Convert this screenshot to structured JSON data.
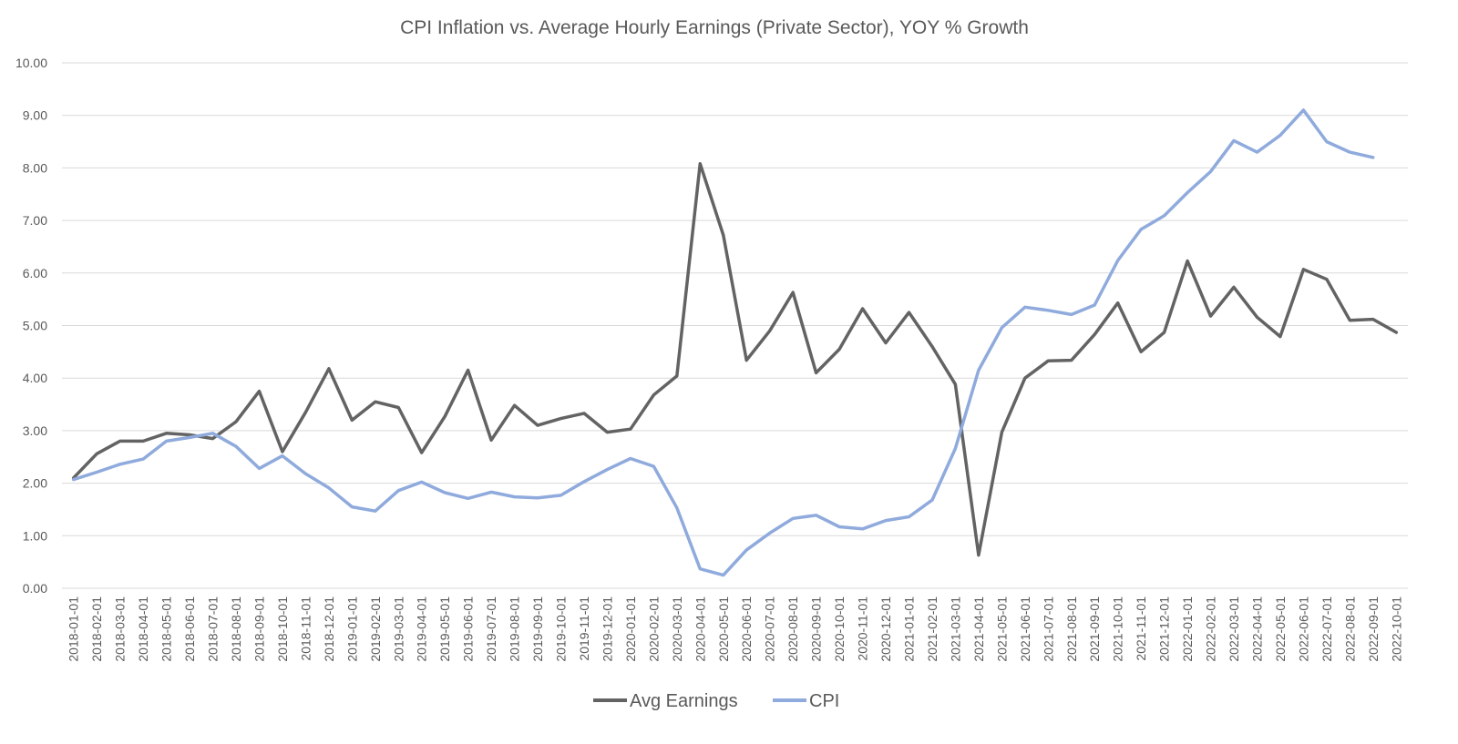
{
  "chart_data": {
    "type": "line",
    "title": "CPI Inflation vs. Average Hourly Earnings (Private Sector), YOY % Growth",
    "xlabel": "",
    "ylabel": "",
    "ylim": [
      0,
      10
    ],
    "yticks": [
      "0.00",
      "1.00",
      "2.00",
      "3.00",
      "4.00",
      "5.00",
      "6.00",
      "7.00",
      "8.00",
      "9.00",
      "10.00"
    ],
    "grid": true,
    "legend_position": "bottom",
    "categories": [
      "2018-01-01",
      "2018-02-01",
      "2018-03-01",
      "2018-04-01",
      "2018-05-01",
      "2018-06-01",
      "2018-07-01",
      "2018-08-01",
      "2018-09-01",
      "2018-10-01",
      "2018-11-01",
      "2018-12-01",
      "2019-01-01",
      "2019-02-01",
      "2019-03-01",
      "2019-04-01",
      "2019-05-01",
      "2019-06-01",
      "2019-07-01",
      "2019-08-01",
      "2019-09-01",
      "2019-10-01",
      "2019-11-01",
      "2019-12-01",
      "2020-01-01",
      "2020-02-01",
      "2020-03-01",
      "2020-04-01",
      "2020-05-01",
      "2020-06-01",
      "2020-07-01",
      "2020-08-01",
      "2020-09-01",
      "2020-10-01",
      "2020-11-01",
      "2020-12-01",
      "2021-01-01",
      "2021-02-01",
      "2021-03-01",
      "2021-04-01",
      "2021-05-01",
      "2021-06-01",
      "2021-07-01",
      "2021-08-01",
      "2021-09-01",
      "2021-10-01",
      "2021-11-01",
      "2021-12-01",
      "2022-01-01",
      "2022-02-01",
      "2022-03-01",
      "2022-04-01",
      "2022-05-01",
      "2022-06-01",
      "2022-07-01",
      "2022-08-01",
      "2022-09-01",
      "2022-10-01"
    ],
    "series": [
      {
        "name": "Avg Earnings",
        "color": "#636363",
        "values": [
          2.1,
          2.56,
          2.8,
          2.8,
          2.95,
          2.92,
          2.85,
          3.17,
          3.75,
          2.6,
          3.35,
          4.18,
          3.2,
          3.55,
          3.44,
          2.58,
          3.27,
          4.15,
          2.82,
          3.48,
          3.1,
          3.23,
          3.33,
          2.97,
          3.03,
          3.68,
          4.04,
          8.08,
          6.72,
          4.34,
          4.9,
          5.63,
          4.1,
          4.55,
          5.32,
          4.67,
          5.25,
          4.6,
          3.88,
          0.63,
          2.97,
          4.0,
          4.33,
          4.34,
          4.83,
          5.43,
          4.5,
          4.87,
          6.23,
          5.18,
          5.73,
          5.16,
          4.79,
          6.07,
          5.88,
          5.1,
          5.12,
          4.87
        ]
      },
      {
        "name": "CPI",
        "color": "#8faadc",
        "values": [
          2.07,
          2.21,
          2.36,
          2.46,
          2.8,
          2.87,
          2.95,
          2.7,
          2.28,
          2.52,
          2.18,
          1.91,
          1.55,
          1.47,
          1.86,
          2.02,
          1.82,
          1.71,
          1.83,
          1.74,
          1.72,
          1.77,
          2.03,
          2.26,
          2.47,
          2.32,
          1.53,
          0.37,
          0.25,
          0.73,
          1.05,
          1.33,
          1.39,
          1.17,
          1.13,
          1.29,
          1.36,
          1.68,
          2.66,
          4.15,
          4.96,
          5.35,
          5.29,
          5.21,
          5.39,
          6.24,
          6.83,
          7.09,
          7.53,
          7.93,
          8.52,
          8.3,
          8.62,
          9.1,
          8.5,
          8.3,
          8.2,
          null
        ]
      }
    ]
  }
}
